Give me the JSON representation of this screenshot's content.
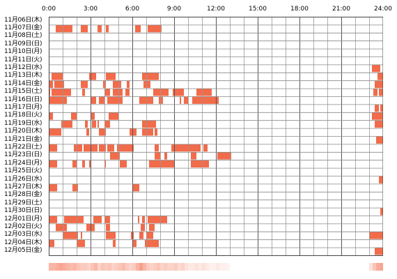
{
  "chart_data": {
    "type": "heatmap",
    "x_axis": {
      "unit": "hour",
      "range": [
        0,
        24
      ],
      "tick_labels": [
        "0:00",
        "3:00",
        "6:00",
        "9:00",
        "12:00",
        "15:00",
        "18:00",
        "21:00",
        "24:00"
      ]
    },
    "grid": true,
    "cell_color": "#f26b4a",
    "days": [
      {
        "label": "11月06日(木)",
        "spans": []
      },
      {
        "label": "11月07日(金)",
        "spans": [
          [
            0.5,
            1.7
          ],
          [
            2.3,
            2.8
          ],
          [
            3.5,
            3.8
          ],
          [
            4.1,
            4.3
          ],
          [
            6.2,
            6.6
          ],
          [
            7.1,
            8.1
          ]
        ]
      },
      {
        "label": "11月08日(土)",
        "spans": []
      },
      {
        "label": "11月09日(日)",
        "spans": []
      },
      {
        "label": "11月10日(月)",
        "spans": []
      },
      {
        "label": "11月11日(火)",
        "spans": []
      },
      {
        "label": "11月12日(水)",
        "spans": [
          [
            23.2,
            23.8
          ]
        ]
      },
      {
        "label": "11月13日(木)",
        "spans": [
          [
            0.2,
            1.0
          ],
          [
            2.9,
            3.4
          ],
          [
            4.1,
            4.8
          ],
          [
            6.7,
            7.9
          ],
          [
            23.6,
            24.0
          ]
        ]
      },
      {
        "label": "11月14日(金)",
        "spans": [
          [
            0,
            0.3
          ],
          [
            0.4,
            1.1
          ],
          [
            2.3,
            2.8
          ],
          [
            3.9,
            4.1
          ],
          [
            4.6,
            5.2
          ],
          [
            5.6,
            5.8
          ],
          [
            6.8,
            7.3
          ],
          [
            23.4,
            24.0
          ]
        ]
      },
      {
        "label": "11月15日(土)",
        "spans": [
          [
            0,
            0.1
          ],
          [
            0.2,
            1.6
          ],
          [
            2.4,
            2.6
          ],
          [
            4.0,
            4.4
          ],
          [
            4.6,
            5.3
          ],
          [
            5.5,
            5.8
          ],
          [
            7.5,
            8.6
          ],
          [
            8.9,
            9.7
          ],
          [
            10.6,
            11.7
          ],
          [
            23.3,
            23.6
          ],
          [
            23.7,
            24.0
          ]
        ]
      },
      {
        "label": "11月16日(日)",
        "spans": [
          [
            0,
            1.3
          ],
          [
            3.0,
            3.4
          ],
          [
            3.6,
            4.0
          ],
          [
            4.2,
            5.3
          ],
          [
            6.5,
            7.5
          ],
          [
            7.9,
            8.2
          ],
          [
            9.4,
            9.5
          ],
          [
            9.7,
            10.0
          ],
          [
            10.3,
            12.2
          ]
        ]
      },
      {
        "label": "11月17日(月)",
        "spans": [
          [
            23.4,
            23.7
          ],
          [
            23.8,
            24.0
          ]
        ]
      },
      {
        "label": "11月18日(火)",
        "spans": [
          [
            0,
            0.3
          ],
          [
            1.6,
            2.0
          ],
          [
            3.0,
            3.3
          ],
          [
            4.3,
            5.0
          ],
          [
            23.2,
            24.0
          ]
        ]
      },
      {
        "label": "11月19日(水)",
        "spans": [
          [
            0.9,
            1.7
          ],
          [
            2.6,
            2.8
          ],
          [
            3.1,
            3.4
          ],
          [
            3.5,
            3.6
          ],
          [
            4.0,
            4.4
          ],
          [
            6.7,
            7.7
          ],
          [
            23.4,
            24.0
          ]
        ]
      },
      {
        "label": "11月20日(木)",
        "spans": [
          [
            0,
            0.9
          ],
          [
            2.7,
            2.9
          ],
          [
            3.6,
            4.1
          ],
          [
            5.8,
            6.3
          ],
          [
            6.7,
            7.5
          ],
          [
            7.6,
            7.8
          ]
        ]
      },
      {
        "label": "11月21日(金)",
        "spans": [
          [
            23.5,
            24.0
          ]
        ]
      },
      {
        "label": "11月22日(土)",
        "spans": [
          [
            0,
            0.6
          ],
          [
            1.8,
            2.4
          ],
          [
            2.5,
            3.5
          ],
          [
            3.6,
            4.1
          ],
          [
            4.2,
            4.7
          ],
          [
            4.9,
            6.1
          ],
          [
            7.6,
            7.9
          ],
          [
            8.8,
            10.9
          ],
          [
            11.1,
            11.4
          ]
        ]
      },
      {
        "label": "11月23日(日)",
        "spans": [
          [
            4.4,
            5.1
          ],
          [
            7.6,
            8.0
          ],
          [
            8.3,
            8.5
          ],
          [
            10.2,
            10.6
          ],
          [
            12.1,
            13.1
          ]
        ]
      },
      {
        "label": "11月24日(月)",
        "spans": [
          [
            0,
            0.6
          ],
          [
            1.7,
            2.0
          ],
          [
            2.4,
            2.6
          ],
          [
            2.9,
            3.0
          ],
          [
            4.0,
            4.1
          ],
          [
            5.1,
            5.6
          ],
          [
            7.2,
            9.0
          ],
          [
            10.2,
            11.5
          ]
        ]
      },
      {
        "label": "11月25日(火)",
        "spans": []
      },
      {
        "label": "11月26日(水)",
        "spans": [
          [
            23.7,
            24.0
          ]
        ]
      },
      {
        "label": "11月27日(木)",
        "spans": [
          [
            0,
            0.6
          ],
          [
            1.7,
            2.1
          ],
          [
            6.0,
            6.5
          ]
        ]
      },
      {
        "label": "11月28日(金)",
        "spans": []
      },
      {
        "label": "11月29日(土)",
        "spans": []
      },
      {
        "label": "11月30日(日)",
        "spans": [
          [
            23.8,
            24.0
          ]
        ]
      },
      {
        "label": "12月01日(月)",
        "spans": [
          [
            0,
            0.6
          ],
          [
            1.1,
            2.5
          ],
          [
            3.2,
            3.8
          ],
          [
            4.0,
            4.4
          ],
          [
            6.4,
            6.5
          ],
          [
            6.7,
            6.9
          ],
          [
            7.1,
            8.5
          ]
        ]
      },
      {
        "label": "12月02日(火)",
        "spans": [
          [
            0.5,
            1.3
          ],
          [
            2.7,
            3.3
          ],
          [
            4.1,
            4.4
          ],
          [
            6.6,
            6.9
          ],
          [
            7.2,
            7.6
          ]
        ]
      },
      {
        "label": "12月03日(水)",
        "spans": [
          [
            1.0,
            2.1
          ],
          [
            2.3,
            2.4
          ],
          [
            4.1,
            4.8
          ],
          [
            5.9,
            6.1
          ],
          [
            6.5,
            6.8
          ],
          [
            7.0,
            7.5
          ],
          [
            23.0,
            24.0
          ]
        ]
      },
      {
        "label": "12月04日(木)",
        "spans": [
          [
            0,
            0.4
          ],
          [
            2.0,
            2.6
          ],
          [
            4.6,
            4.8
          ],
          [
            6.0,
            6.3
          ],
          [
            6.9,
            7.9
          ]
        ]
      },
      {
        "label": "12月05日(金)",
        "spans": [
          [
            23.4,
            24.0
          ]
        ]
      }
    ],
    "density_strip": {
      "bins_per_hour": 4,
      "values": [
        0.5,
        0.5,
        0.55,
        0.6,
        0.55,
        0.5,
        0.45,
        0.5,
        0.4,
        0.35,
        0.35,
        0.3,
        0.4,
        0.5,
        0.3,
        0.4,
        0.35,
        0.4,
        0.3,
        0.35,
        0.4,
        0.45,
        0.35,
        0.3,
        0.35,
        0.5,
        0.65,
        0.5,
        0.35,
        0.3,
        0.35,
        0.4,
        0.3,
        0.35,
        0.3,
        0.3,
        0.35,
        0.25,
        0.3,
        0.2,
        0.15,
        0.15,
        0.2,
        0.15,
        0.2,
        0.15,
        0.1,
        0.1,
        0.15,
        0.1,
        0.1,
        0.08,
        0,
        0,
        0,
        0,
        0,
        0,
        0,
        0,
        0,
        0,
        0,
        0,
        0,
        0,
        0,
        0,
        0,
        0,
        0,
        0,
        0,
        0,
        0,
        0,
        0,
        0,
        0,
        0,
        0,
        0,
        0,
        0,
        0,
        0,
        0,
        0,
        0,
        0,
        0,
        0,
        0.2,
        0.4,
        0.55,
        0.6
      ]
    }
  }
}
